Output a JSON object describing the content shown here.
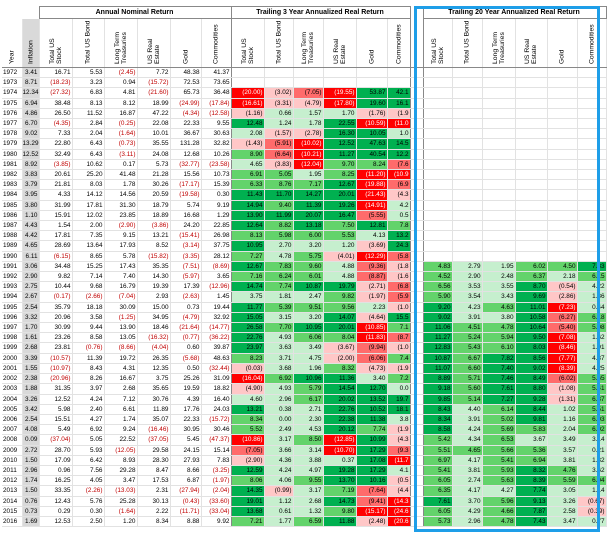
{
  "headers": {
    "group_nominal": "Annual Nominal Return",
    "group_t3": "Trailing 3 Year Annualized Real Return",
    "group_t20": "Trailing 20 Year Annualized Real Return",
    "year": "Year",
    "inflation": "Inflation",
    "assets": [
      "Total US Stock",
      "Total US Bond",
      "Long Term Treasuries",
      "US Real Estate",
      "Gold",
      "Commodities"
    ]
  },
  "rows": [
    {
      "year": "1972",
      "infl": "3.41",
      "nom": [
        "16.71",
        "5.53",
        "(2.45)",
        "7.72",
        "48.38",
        "41.37"
      ],
      "t3": [
        "",
        "",
        "",
        "",
        "",
        ""
      ],
      "t20": [
        "",
        "",
        "",
        "",
        "",
        ""
      ]
    },
    {
      "year": "1973",
      "infl": "8.71",
      "nom": [
        "(18.23)",
        "3.23",
        "0.94",
        "(15.72)",
        "72.53",
        "73.65"
      ],
      "t3": [
        "",
        "",
        "",
        "",
        "",
        ""
      ],
      "t20": [
        "",
        "",
        "",
        "",
        "",
        ""
      ]
    },
    {
      "year": "1974",
      "infl": "12.34",
      "nom": [
        "(27.32)",
        "6.83",
        "4.81",
        "(21.60)",
        "65.73",
        "36.48"
      ],
      "t3": [
        "(20.00)",
        "(3.02)",
        "(7.05)",
        "(19.55)",
        "53.87",
        "42.1"
      ],
      "t20": [
        "",
        "",
        "",
        "",
        "",
        ""
      ]
    },
    {
      "year": "1975",
      "infl": "6.94",
      "nom": [
        "38.48",
        "8.13",
        "8.12",
        "18.99",
        "(24.99)",
        "(17.84)"
      ],
      "t3": [
        "(16.61)",
        "(3.31)",
        "(4.79)",
        "(17.80)",
        "19.60",
        "16.1"
      ],
      "t20": [
        "",
        "",
        "",
        "",
        "",
        ""
      ]
    },
    {
      "year": "1976",
      "infl": "4.86",
      "nom": [
        "26.50",
        "11.52",
        "16.87",
        "47.22",
        "(4.34)",
        "(12.58)"
      ],
      "t3": [
        "(1.16)",
        "0.66",
        "1.57",
        "1.70",
        "(1.76)",
        "(1.9"
      ],
      "t20": [
        "",
        "",
        "",
        "",
        "",
        ""
      ]
    },
    {
      "year": "1977",
      "infl": "6.70",
      "nom": [
        "(4.35)",
        "2.84",
        "(0.25)",
        "22.08",
        "22.33",
        "9.55"
      ],
      "t3": [
        "12.48",
        "1.24",
        "1.78",
        "22.55",
        "(10.59)",
        "(11.0"
      ],
      "t20": [
        "",
        "",
        "",
        "",
        "",
        ""
      ]
    },
    {
      "year": "1978",
      "infl": "9.02",
      "nom": [
        "7.33",
        "2.04",
        "(1.64)",
        "10.01",
        "36.67",
        "30.63"
      ],
      "t3": [
        "2.08",
        "(1.57)",
        "(2.78)",
        "16.30",
        "10.05",
        "1.0"
      ],
      "t20": [
        "",
        "",
        "",
        "",
        "",
        ""
      ]
    },
    {
      "year": "1979",
      "infl": "13.29",
      "nom": [
        "22.80",
        "6.43",
        "(0.73)",
        "35.55",
        "131.28",
        "32.82"
      ],
      "t3": [
        "(1.43)",
        "(5.91)",
        "(10.02)",
        "12.52",
        "47.63",
        "14.5"
      ],
      "t20": [
        "",
        "",
        "",
        "",
        "",
        ""
      ]
    },
    {
      "year": "1980",
      "infl": "12.52",
      "nom": [
        "32.49",
        "6.43",
        "(3.11)",
        "24.08",
        "12.68",
        "10.26"
      ],
      "t3": [
        "8.90",
        "(6.64)",
        "(10.21)",
        "11.27",
        "40.54",
        "12.2"
      ],
      "t20": [
        "",
        "",
        "",
        "",
        "",
        ""
      ]
    },
    {
      "year": "1981",
      "infl": "8.92",
      "nom": [
        "(3.85)",
        "10.62",
        "0.17",
        "5.73",
        "(32.77)",
        "(23.58)"
      ],
      "t3": [
        "4.65",
        "(3.83)",
        "(12.04)",
        "9.70",
        "8.24",
        "(7.6"
      ],
      "t20": [
        "",
        "",
        "",
        "",
        "",
        ""
      ]
    },
    {
      "year": "1982",
      "infl": "3.83",
      "nom": [
        "20.61",
        "25.20",
        "41.48",
        "21.28",
        "15.56",
        "10.73"
      ],
      "t3": [
        "6.91",
        "5.05",
        "1.95",
        "8.25",
        "(11.20)",
        "(10.9"
      ],
      "t20": [
        "",
        "",
        "",
        "",
        "",
        ""
      ]
    },
    {
      "year": "1983",
      "infl": "3.79",
      "nom": [
        "21.81",
        "8.03",
        "1.78",
        "30.26",
        "(17.17)",
        "15.39"
      ],
      "t3": [
        "6.33",
        "8.76",
        "7.17",
        "12.67",
        "(19.88)",
        "(6.9"
      ],
      "t20": [
        "",
        "",
        "",
        "",
        "",
        ""
      ]
    },
    {
      "year": "1984",
      "infl": "3.95",
      "nom": [
        "4.33",
        "14.12",
        "14.56",
        "20.59",
        "(19.58)",
        "0.30"
      ],
      "t3": [
        "11.43",
        "11.70",
        "14.27",
        "20.01",
        "(21.43)",
        "(4.3"
      ],
      "t20": [
        "",
        "",
        "",
        "",
        "",
        ""
      ]
    },
    {
      "year": "1985",
      "infl": "3.80",
      "nom": [
        "31.99",
        "17.81",
        "31.30",
        "18.79",
        "5.74",
        "9.19"
      ],
      "t3": [
        "14.94",
        "9.40",
        "11.39",
        "19.26",
        "(14.91)",
        "4.2"
      ],
      "t20": [
        "",
        "",
        "",
        "",
        "",
        ""
      ]
    },
    {
      "year": "1986",
      "infl": "1.10",
      "nom": [
        "15.91",
        "12.02",
        "23.85",
        "18.89",
        "16.68",
        "1.29"
      ],
      "t3": [
        "13.90",
        "11.99",
        "20.07",
        "16.47",
        "(5.55)",
        "0.5"
      ],
      "t20": [
        "",
        "",
        "",
        "",
        "",
        ""
      ]
    },
    {
      "year": "1987",
      "infl": "4.43",
      "nom": [
        "1.54",
        "2.00",
        "(2.90)",
        "(3.86)",
        "24.20",
        "22.85"
      ],
      "t3": [
        "12.64",
        "8.82",
        "13.18",
        "7.50",
        "12.81",
        "7.8"
      ],
      "t20": [
        "",
        "",
        "",
        "",
        "",
        ""
      ]
    },
    {
      "year": "1988",
      "infl": "4.42",
      "nom": [
        "17.81",
        "7.35",
        "9.15",
        "13.21",
        "(15.41)",
        "26.98"
      ],
      "t3": [
        "8.13",
        "5.98",
        "6.00",
        "5.53",
        "4.13",
        "13.2"
      ],
      "t20": [
        "",
        "",
        "",
        "",
        "",
        ""
      ]
    },
    {
      "year": "1989",
      "infl": "4.65",
      "nom": [
        "28.69",
        "13.64",
        "17.93",
        "8.52",
        "(3.14)",
        "37.75"
      ],
      "t3": [
        "10.95",
        "2.70",
        "3.20",
        "1.20",
        "(3.69)",
        "24.3"
      ],
      "t20": [
        "",
        "",
        "",
        "",
        "",
        ""
      ]
    },
    {
      "year": "1990",
      "infl": "6.11",
      "nom": [
        "(6.15)",
        "8.65",
        "5.78",
        "(15.82)",
        "(3.35)",
        "28.12"
      ],
      "t3": [
        "7.27",
        "4.78",
        "5.75",
        "(4.01)",
        "(12.29)",
        "(5.8"
      ],
      "t20": [
        "",
        "",
        "",
        "",
        "",
        ""
      ]
    },
    {
      "year": "1991",
      "infl": "3.06",
      "nom": [
        "34.48",
        "15.25",
        "17.43",
        "35.35",
        "(7.51)",
        "(8.69)"
      ],
      "t3": [
        "12.67",
        "7.83",
        "9.60",
        "4.88",
        "(9.36)",
        "(1.8"
      ],
      "t20": [
        "4.83",
        "2.79",
        "1.95",
        "6.02",
        "4.50",
        "7.83"
      ]
    },
    {
      "year": "1992",
      "infl": "2.90",
      "nom": [
        "9.82",
        "7.14",
        "7.40",
        "14.30",
        "(5.97)",
        "3.65"
      ],
      "t3": [
        "7.16",
        "6.24",
        "6.01",
        "4.88",
        "(8.87)",
        "(1.6"
      ],
      "t20": [
        "4.52",
        "2.90",
        "2.48",
        "6.37",
        "2.18",
        "6.15"
      ]
    },
    {
      "year": "1993",
      "infl": "2.75",
      "nom": [
        "10.44",
        "9.68",
        "16.79",
        "19.39",
        "17.39",
        "(12.96)"
      ],
      "t3": [
        "14.74",
        "7.74",
        "10.87",
        "19.79",
        "(2.71)",
        "(6.8"
      ],
      "t20": [
        "6.56",
        "3.53",
        "3.55",
        "8.70",
        "(0.54)",
        "4.22"
      ]
    },
    {
      "year": "1994",
      "infl": "2.67",
      "nom": [
        "(0.17)",
        "(2.66)",
        "(7.04)",
        "2.93",
        "(2.63)",
        "1.45"
      ],
      "t3": [
        "3.75",
        "1.81",
        "2.47",
        "9.82",
        "(1.97)",
        "(5.9"
      ],
      "t20": [
        "5.90",
        "3.54",
        "3.43",
        "9.69",
        "(2.86)",
        "1.36"
      ]
    },
    {
      "year": "1995",
      "infl": "2.54",
      "nom": [
        "35.79",
        "18.18",
        "30.09",
        "15.00",
        "0.73",
        "19.44"
      ],
      "t3": [
        "11.77",
        "5.39",
        "9.51",
        "9.56",
        "2.23",
        "(1.0"
      ],
      "t20": [
        "9.20",
        "4.23",
        "4.63",
        "11.01",
        "(7.23)",
        "0.44"
      ]
    },
    {
      "year": "1996",
      "infl": "3.32",
      "nom": [
        "20.96",
        "3.58",
        "(1.25)",
        "34.95",
        "(4.79)",
        "32.92"
      ],
      "t3": [
        "15.05",
        "3.15",
        "3.20",
        "14.07",
        "(4.64)",
        "15.5"
      ],
      "t20": [
        "9.02",
        "3.91",
        "3.80",
        "10.58",
        "(6.27)",
        "6.18"
      ]
    },
    {
      "year": "1997",
      "infl": "1.70",
      "nom": [
        "30.99",
        "9.44",
        "13.90",
        "18.46",
        "(21.64)",
        "(14.77)"
      ],
      "t3": [
        "26.58",
        "7.70",
        "10.95",
        "20.01",
        "(10.85)",
        "7.1"
      ],
      "t20": [
        "11.06",
        "4.51",
        "4.78",
        "10.64",
        "(5.40)",
        "5.08"
      ]
    },
    {
      "year": "1998",
      "infl": "1.61",
      "nom": [
        "23.26",
        "8.58",
        "13.05",
        "(16.32)",
        "(0.77)",
        "(36.22)"
      ],
      "t3": [
        "22.76",
        "4.93",
        "6.06",
        "8.04",
        "(11.83)",
        "(8.7"
      ],
      "t20": [
        "11.27",
        "5.24",
        "5.94",
        "9.50",
        "(7.08)",
        "1.62"
      ]
    },
    {
      "year": "1999",
      "infl": "2.68",
      "nom": [
        "23.81",
        "(0.76)",
        "(8.66)",
        "(4.04)",
        "0.60",
        "39.87"
      ],
      "t3": [
        "23.97",
        "3.63",
        "3.49",
        "(3.67)",
        "(9.94)",
        "(1.0"
      ],
      "t20": [
        "12.83",
        "5.43",
        "6.10",
        "8.03",
        "(8.46)",
        "1.91"
      ]
    },
    {
      "year": "2000",
      "infl": "3.39",
      "nom": [
        "(10.57)",
        "11.39",
        "19.72",
        "26.35",
        "(5.68)",
        "48.63"
      ],
      "t3": [
        "8.23",
        "3.71",
        "4.75",
        "(2.00)",
        "(6.06)",
        "7.4"
      ],
      "t20": [
        "10.87",
        "6.67",
        "7.82",
        "8.56",
        "(7.77)",
        "4.37"
      ]
    },
    {
      "year": "2001",
      "infl": "1.55",
      "nom": [
        "(10.97)",
        "8.43",
        "4.31",
        "12.35",
        "0.50",
        "(32.44)"
      ],
      "t3": [
        "(0.03)",
        "3.68",
        "1.96",
        "8.32",
        "(4.73)",
        "(1.9"
      ],
      "t20": [
        "11.07",
        "6.60",
        "7.40",
        "9.02",
        "(8.39)",
        "4.25"
      ]
    },
    {
      "year": "2002",
      "infl": "2.38",
      "nom": [
        "(20.96)",
        "8.26",
        "16.67",
        "3.75",
        "25.26",
        "31.09"
      ],
      "t3": [
        "(16.04)",
        "6.92",
        "10.96",
        "11.36",
        "3.40",
        "7.2"
      ],
      "t20": [
        "8.89",
        "5.71",
        "7.46",
        "8.49",
        "(6.02)",
        "5.65"
      ]
    },
    {
      "year": "2003",
      "infl": "1.88",
      "nom": [
        "31.35",
        "3.97",
        "2.68",
        "35.65",
        "19.59",
        "18.82"
      ],
      "t3": [
        "(4.90)",
        "4.93",
        "5.79",
        "14.54",
        "12.70",
        "0.0"
      ],
      "t20": [
        "9.18",
        "5.60",
        "7.61",
        "8.80",
        "(1.08)",
        "5.41"
      ]
    },
    {
      "year": "2004",
      "infl": "3.26",
      "nom": [
        "12.52",
        "4.24",
        "7.12",
        "30.76",
        "4.39",
        "16.40"
      ],
      "t3": [
        "4.60",
        "2.96",
        "6.17",
        "20.02",
        "13.52",
        "19.7"
      ],
      "t20": [
        "9.85",
        "5.14",
        "7.27",
        "9.28",
        "(1.31)",
        "6.37"
      ]
    },
    {
      "year": "2005",
      "infl": "3.42",
      "nom": [
        "5.98",
        "2.40",
        "6.61",
        "11.89",
        "17.76",
        "24.03"
      ],
      "t3": [
        "13.21",
        "0.38",
        "2.71",
        "22.76",
        "10.52",
        "18.1"
      ],
      "t20": [
        "8.43",
        "4.40",
        "6.14",
        "8.44",
        "1.02",
        "5.51"
      ]
    },
    {
      "year": "2006",
      "infl": "2.54",
      "nom": [
        "15.51",
        "4.27",
        "1.74",
        "35.07",
        "22.33",
        "(15.72)"
      ],
      "t3": [
        "8.34",
        "0.00",
        "2.30",
        "22.38",
        "11.38",
        "3.8"
      ],
      "t20": [
        "8.34",
        "3.91",
        "5.02",
        "9.81",
        "1.16",
        "6.03"
      ]
    },
    {
      "year": "2007",
      "infl": "4.08",
      "nom": [
        "5.49",
        "6.92",
        "9.24",
        "(16.46)",
        "30.95",
        "30.46"
      ],
      "t3": [
        "5.52",
        "2.49",
        "4.53",
        "20.12",
        "7.74",
        "(1.9"
      ],
      "t20": [
        "8.58",
        "4.24",
        "5.69",
        "5.83",
        "2.04",
        "6.02"
      ]
    },
    {
      "year": "2008",
      "infl": "0.09",
      "nom": [
        "(37.04)",
        "5.05",
        "22.52",
        "(37.05)",
        "5.45",
        "(47.37)"
      ],
      "t3": [
        "(10.86)",
        "3.17",
        "8.50",
        "(12.85)",
        "10.99",
        "(4.3"
      ],
      "t20": [
        "5.42",
        "4.34",
        "6.53",
        "3.67",
        "3.49",
        "3.14"
      ]
    },
    {
      "year": "2009",
      "infl": "2.72",
      "nom": [
        "28.70",
        "5.93",
        "(12.05)",
        "29.58",
        "24.15",
        "15.14"
      ],
      "t3": [
        "(7.05)",
        "3.66",
        "3.14",
        "(10.70)",
        "17.29",
        "(9.3"
      ],
      "t20": [
        "5.51",
        "4.65",
        "5.66",
        "5.36",
        "3.57",
        "0.21"
      ]
    },
    {
      "year": "2010",
      "infl": "1.50",
      "nom": [
        "17.09",
        "6.42",
        "8.93",
        "28.30",
        "27.93",
        "7.83"
      ],
      "t3": [
        "(2.90)",
        "4.36",
        "3.88",
        "0.37",
        "17.08",
        "(11.7"
      ],
      "t20": [
        "6.97",
        "4.17",
        "5.41",
        "6.94",
        "3.81",
        "1.32"
      ]
    },
    {
      "year": "2011",
      "infl": "2.96",
      "nom": [
        "0.96",
        "7.56",
        "29.28",
        "8.47",
        "8.66",
        "(3.25)"
      ],
      "t3": [
        "12.59",
        "4.24",
        "4.97",
        "19.28",
        "17.29",
        "4.1"
      ],
      "t20": [
        "5.41",
        "3.81",
        "5.93",
        "8.32",
        "4.76",
        "3.62"
      ]
    },
    {
      "year": "2012",
      "infl": "1.74",
      "nom": [
        "16.25",
        "4.05",
        "3.47",
        "17.53",
        "6.87",
        "(1.97)"
      ],
      "t3": [
        "8.06",
        "4.06",
        "9.55",
        "13.70",
        "10.16",
        "(0.5"
      ],
      "t20": [
        "6.05",
        "2.74",
        "5.63",
        "8.39",
        "5.59",
        "6.04"
      ]
    },
    {
      "year": "2013",
      "infl": "1.50",
      "nom": [
        "33.35",
        "(2.26)",
        "(13.03)",
        "2.31",
        "(27.94)",
        "(2.04)"
      ],
      "t3": [
        "14.35",
        "(0.99)",
        "3.17",
        "7.19",
        "(7.64)",
        "(4.4"
      ],
      "t20": [
        "6.35",
        "4.17",
        "4.27",
        "7.74",
        "3.05",
        "1.14"
      ]
    },
    {
      "year": "2014",
      "infl": "0.76",
      "nom": [
        "12.43",
        "5.76",
        "25.28",
        "30.13",
        "(0.43)",
        "(33.60)"
      ],
      "t3": [
        "19.01",
        "1.12",
        "2.68",
        "14.73",
        "(9.41)",
        "(14.3"
      ],
      "t20": [
        "7.61",
        "3.70",
        "5.96",
        "9.13",
        "3.26",
        "(0.67)"
      ]
    },
    {
      "year": "2015",
      "infl": "0.73",
      "nom": [
        "0.29",
        "0.30",
        "(1.64)",
        "2.22",
        "(11.71)",
        "(33.04)"
      ],
      "t3": [
        "13.68",
        "0.61",
        "1.32",
        "9.80",
        "(15.17)",
        "(24.6"
      ],
      "t20": [
        "6.05",
        "4.29",
        "4.66",
        "7.87",
        "2.58",
        "(0.39)"
      ]
    },
    {
      "year": "2016",
      "infl": "1.69",
      "nom": [
        "12.53",
        "2.50",
        "1.20",
        "8.34",
        "8.88",
        "9.92"
      ],
      "t3": [
        "7.21",
        "1.77",
        "6.59",
        "11.88",
        "(2.48)",
        "(20.6"
      ],
      "t20": [
        "5.73",
        "2.96",
        "4.78",
        "7.43",
        "3.47",
        "0.77"
      ]
    }
  ]
}
